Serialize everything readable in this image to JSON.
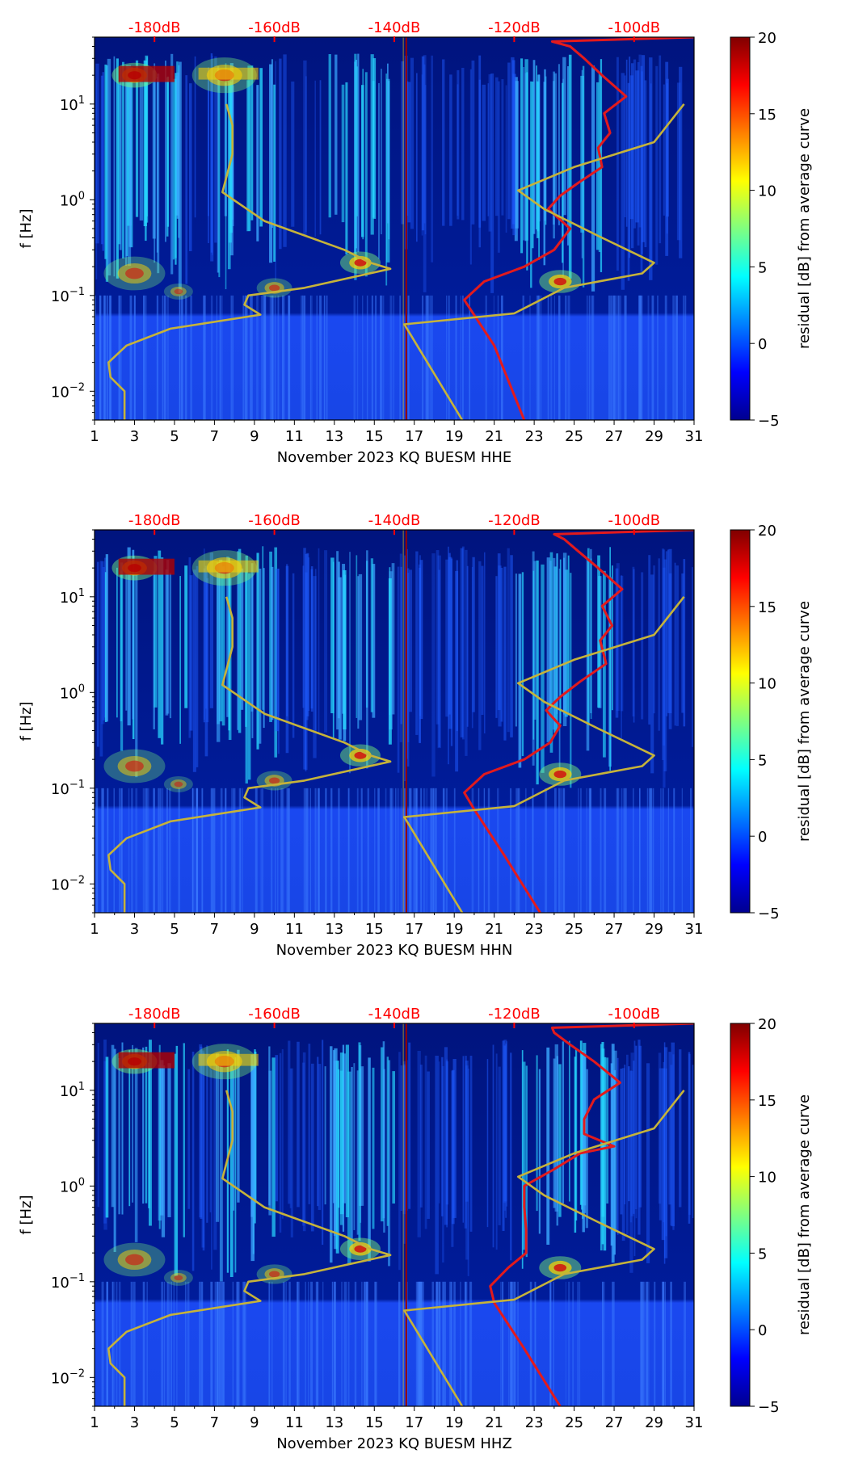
{
  "colorbar": {
    "min": -5,
    "max": 20,
    "ticks": [
      20,
      15,
      10,
      5,
      0,
      -5
    ],
    "label": "residual [dB] from average curve"
  },
  "colors": {
    "red_curve": "#e31a1c",
    "olive_curve": "#c6b33a",
    "db_labels": "#ff0000"
  },
  "chart_data": [
    {
      "type": "heatmap",
      "title": "",
      "xlabel": "November 2023 KQ BUESM  HHE",
      "ylabel": "f [Hz]",
      "xlim": [
        1,
        31
      ],
      "ylim": [
        0.005,
        50
      ],
      "yscale": "log",
      "x_ticks": [
        "1",
        "3",
        "5",
        "7",
        "9",
        "11",
        "13",
        "15",
        "17",
        "19",
        "21",
        "23",
        "25",
        "27",
        "29",
        "31"
      ],
      "y_ticks": [
        {
          "label": "10^1",
          "value": 10
        },
        {
          "label": "10^0",
          "value": 1
        },
        {
          "label": "10^−1",
          "value": 0.1
        },
        {
          "label": "10^−2",
          "value": 0.01
        }
      ],
      "top_axis_labels": [
        "-180dB",
        "-160dB",
        "-140dB",
        "-120dB",
        "-100dB"
      ],
      "series": [
        {
          "name": "red_curve",
          "points": [
            [
              22.5,
              0.005
            ],
            [
              21,
              0.03
            ],
            [
              19.5,
              0.09
            ],
            [
              20.5,
              0.14
            ],
            [
              22.5,
              0.2
            ],
            [
              24,
              0.3
            ],
            [
              24.8,
              0.5
            ],
            [
              23.7,
              0.8
            ],
            [
              24.3,
              1.1
            ],
            [
              25.2,
              1.5
            ],
            [
              26.4,
              2.2
            ],
            [
              26.2,
              3.5
            ],
            [
              26.8,
              5
            ],
            [
              26.5,
              8
            ],
            [
              27.6,
              12
            ],
            [
              26.4,
              20
            ],
            [
              25.5,
              30
            ],
            [
              24.8,
              40
            ],
            [
              23.9,
              45
            ],
            [
              31,
              50
            ]
          ]
        },
        {
          "name": "olive_curve_left",
          "points": [
            [
              2.5,
              0.005
            ],
            [
              2.5,
              0.01
            ],
            [
              1.8,
              0.014
            ],
            [
              1.7,
              0.02
            ],
            [
              2.6,
              0.03
            ],
            [
              4.8,
              0.045
            ],
            [
              9.3,
              0.063
            ],
            [
              8.5,
              0.08
            ],
            [
              8.7,
              0.1
            ],
            [
              11.5,
              0.12
            ],
            [
              15.8,
              0.19
            ],
            [
              14.8,
              0.22
            ],
            [
              13.5,
              0.3
            ],
            [
              9.5,
              0.6
            ],
            [
              7.4,
              1.2
            ],
            [
              7.9,
              3
            ],
            [
              7.9,
              6
            ],
            [
              7.6,
              10
            ]
          ]
        },
        {
          "name": "olive_curve_right",
          "points": [
            [
              19.4,
              0.005
            ],
            [
              16.5,
              0.05
            ],
            [
              22,
              0.065
            ],
            [
              24.5,
              0.12
            ],
            [
              28.4,
              0.17
            ],
            [
              29,
              0.22
            ],
            [
              26.2,
              0.42
            ],
            [
              23.5,
              0.8
            ],
            [
              22.2,
              1.25
            ],
            [
              25,
              2.2
            ],
            [
              29,
              4
            ],
            [
              30.5,
              10
            ]
          ]
        }
      ]
    },
    {
      "type": "heatmap",
      "title": "",
      "xlabel": "November 2023 KQ BUESM  HHN",
      "ylabel": "f [Hz]",
      "xlim": [
        1,
        31
      ],
      "ylim": [
        0.005,
        50
      ],
      "yscale": "log",
      "x_ticks": [
        "1",
        "3",
        "5",
        "7",
        "9",
        "11",
        "13",
        "15",
        "17",
        "19",
        "21",
        "23",
        "25",
        "27",
        "29",
        "31"
      ],
      "y_ticks": [
        {
          "label": "10^1",
          "value": 10
        },
        {
          "label": "10^0",
          "value": 1
        },
        {
          "label": "10^−1",
          "value": 0.1
        },
        {
          "label": "10^−2",
          "value": 0.01
        }
      ],
      "top_axis_labels": [
        "-180dB",
        "-160dB",
        "-140dB",
        "-120dB",
        "-100dB"
      ],
      "series": [
        {
          "name": "red_curve",
          "points": [
            [
              23.3,
              0.005
            ],
            [
              21.5,
              0.02
            ],
            [
              20,
              0.06
            ],
            [
              19.5,
              0.09
            ],
            [
              20.5,
              0.14
            ],
            [
              22.5,
              0.2
            ],
            [
              23.8,
              0.3
            ],
            [
              24.3,
              0.45
            ],
            [
              23.6,
              0.65
            ],
            [
              24.3,
              0.9
            ],
            [
              25.3,
              1.3
            ],
            [
              26.6,
              2
            ],
            [
              26.3,
              3.5
            ],
            [
              26.9,
              5
            ],
            [
              26.4,
              8
            ],
            [
              27.4,
              12
            ],
            [
              26.2,
              20
            ],
            [
              25.2,
              30
            ],
            [
              24.5,
              40
            ],
            [
              24,
              45
            ],
            [
              31,
              50
            ]
          ]
        },
        {
          "name": "olive_curve_left",
          "points": [
            [
              2.5,
              0.005
            ],
            [
              2.5,
              0.01
            ],
            [
              1.8,
              0.014
            ],
            [
              1.7,
              0.02
            ],
            [
              2.6,
              0.03
            ],
            [
              4.8,
              0.045
            ],
            [
              9.3,
              0.063
            ],
            [
              8.5,
              0.08
            ],
            [
              8.7,
              0.1
            ],
            [
              11.5,
              0.12
            ],
            [
              15.8,
              0.19
            ],
            [
              14.8,
              0.22
            ],
            [
              13.5,
              0.3
            ],
            [
              9.5,
              0.6
            ],
            [
              7.4,
              1.2
            ],
            [
              7.9,
              3
            ],
            [
              7.9,
              6
            ],
            [
              7.6,
              10
            ]
          ]
        },
        {
          "name": "olive_curve_right",
          "points": [
            [
              19.4,
              0.005
            ],
            [
              16.5,
              0.05
            ],
            [
              22,
              0.065
            ],
            [
              24.5,
              0.12
            ],
            [
              28.4,
              0.17
            ],
            [
              29,
              0.22
            ],
            [
              26.2,
              0.42
            ],
            [
              23.5,
              0.8
            ],
            [
              22.2,
              1.25
            ],
            [
              25,
              2.2
            ],
            [
              29,
              4
            ],
            [
              30.5,
              10
            ]
          ]
        }
      ]
    },
    {
      "type": "heatmap",
      "title": "",
      "xlabel": "November 2023 KQ BUESM  HHZ",
      "ylabel": "f [Hz]",
      "xlim": [
        1,
        31
      ],
      "ylim": [
        0.005,
        50
      ],
      "yscale": "log",
      "x_ticks": [
        "1",
        "3",
        "5",
        "7",
        "9",
        "11",
        "13",
        "15",
        "17",
        "19",
        "21",
        "23",
        "25",
        "27",
        "29",
        "31"
      ],
      "y_ticks": [
        {
          "label": "10^1",
          "value": 10
        },
        {
          "label": "10^0",
          "value": 1
        },
        {
          "label": "10^−1",
          "value": 0.1
        },
        {
          "label": "10^−2",
          "value": 0.01
        }
      ],
      "top_axis_labels": [
        "-180dB",
        "-160dB",
        "-140dB",
        "-120dB",
        "-100dB"
      ],
      "series": [
        {
          "name": "red_curve",
          "points": [
            [
              24.3,
              0.005
            ],
            [
              22.5,
              0.02
            ],
            [
              21,
              0.06
            ],
            [
              20.8,
              0.09
            ],
            [
              21.7,
              0.14
            ],
            [
              22.6,
              0.2
            ],
            [
              22.6,
              0.35
            ],
            [
              22.5,
              0.6
            ],
            [
              22.5,
              1
            ],
            [
              24,
              1.5
            ],
            [
              25.3,
              2.2
            ],
            [
              27,
              2.6
            ],
            [
              25.5,
              3.5
            ],
            [
              25.5,
              5
            ],
            [
              26,
              8
            ],
            [
              27.3,
              12
            ],
            [
              26,
              20
            ],
            [
              24.8,
              30
            ],
            [
              24,
              40
            ],
            [
              23.9,
              45
            ],
            [
              31,
              50
            ]
          ]
        },
        {
          "name": "olive_curve_left",
          "points": [
            [
              2.5,
              0.005
            ],
            [
              2.5,
              0.01
            ],
            [
              1.8,
              0.014
            ],
            [
              1.7,
              0.02
            ],
            [
              2.6,
              0.03
            ],
            [
              4.8,
              0.045
            ],
            [
              9.3,
              0.063
            ],
            [
              8.5,
              0.08
            ],
            [
              8.7,
              0.1
            ],
            [
              11.5,
              0.12
            ],
            [
              15.8,
              0.19
            ],
            [
              14.8,
              0.22
            ],
            [
              13.5,
              0.3
            ],
            [
              9.5,
              0.6
            ],
            [
              7.4,
              1.2
            ],
            [
              7.9,
              3
            ],
            [
              7.9,
              6
            ],
            [
              7.6,
              10
            ]
          ]
        },
        {
          "name": "olive_curve_right",
          "points": [
            [
              19.4,
              0.005
            ],
            [
              16.5,
              0.05
            ],
            [
              22,
              0.065
            ],
            [
              24.5,
              0.12
            ],
            [
              28.4,
              0.17
            ],
            [
              29,
              0.22
            ],
            [
              26.2,
              0.42
            ],
            [
              23.5,
              0.8
            ],
            [
              22.2,
              1.25
            ],
            [
              25,
              2.2
            ],
            [
              29,
              4
            ],
            [
              30.5,
              10
            ]
          ]
        }
      ]
    }
  ]
}
